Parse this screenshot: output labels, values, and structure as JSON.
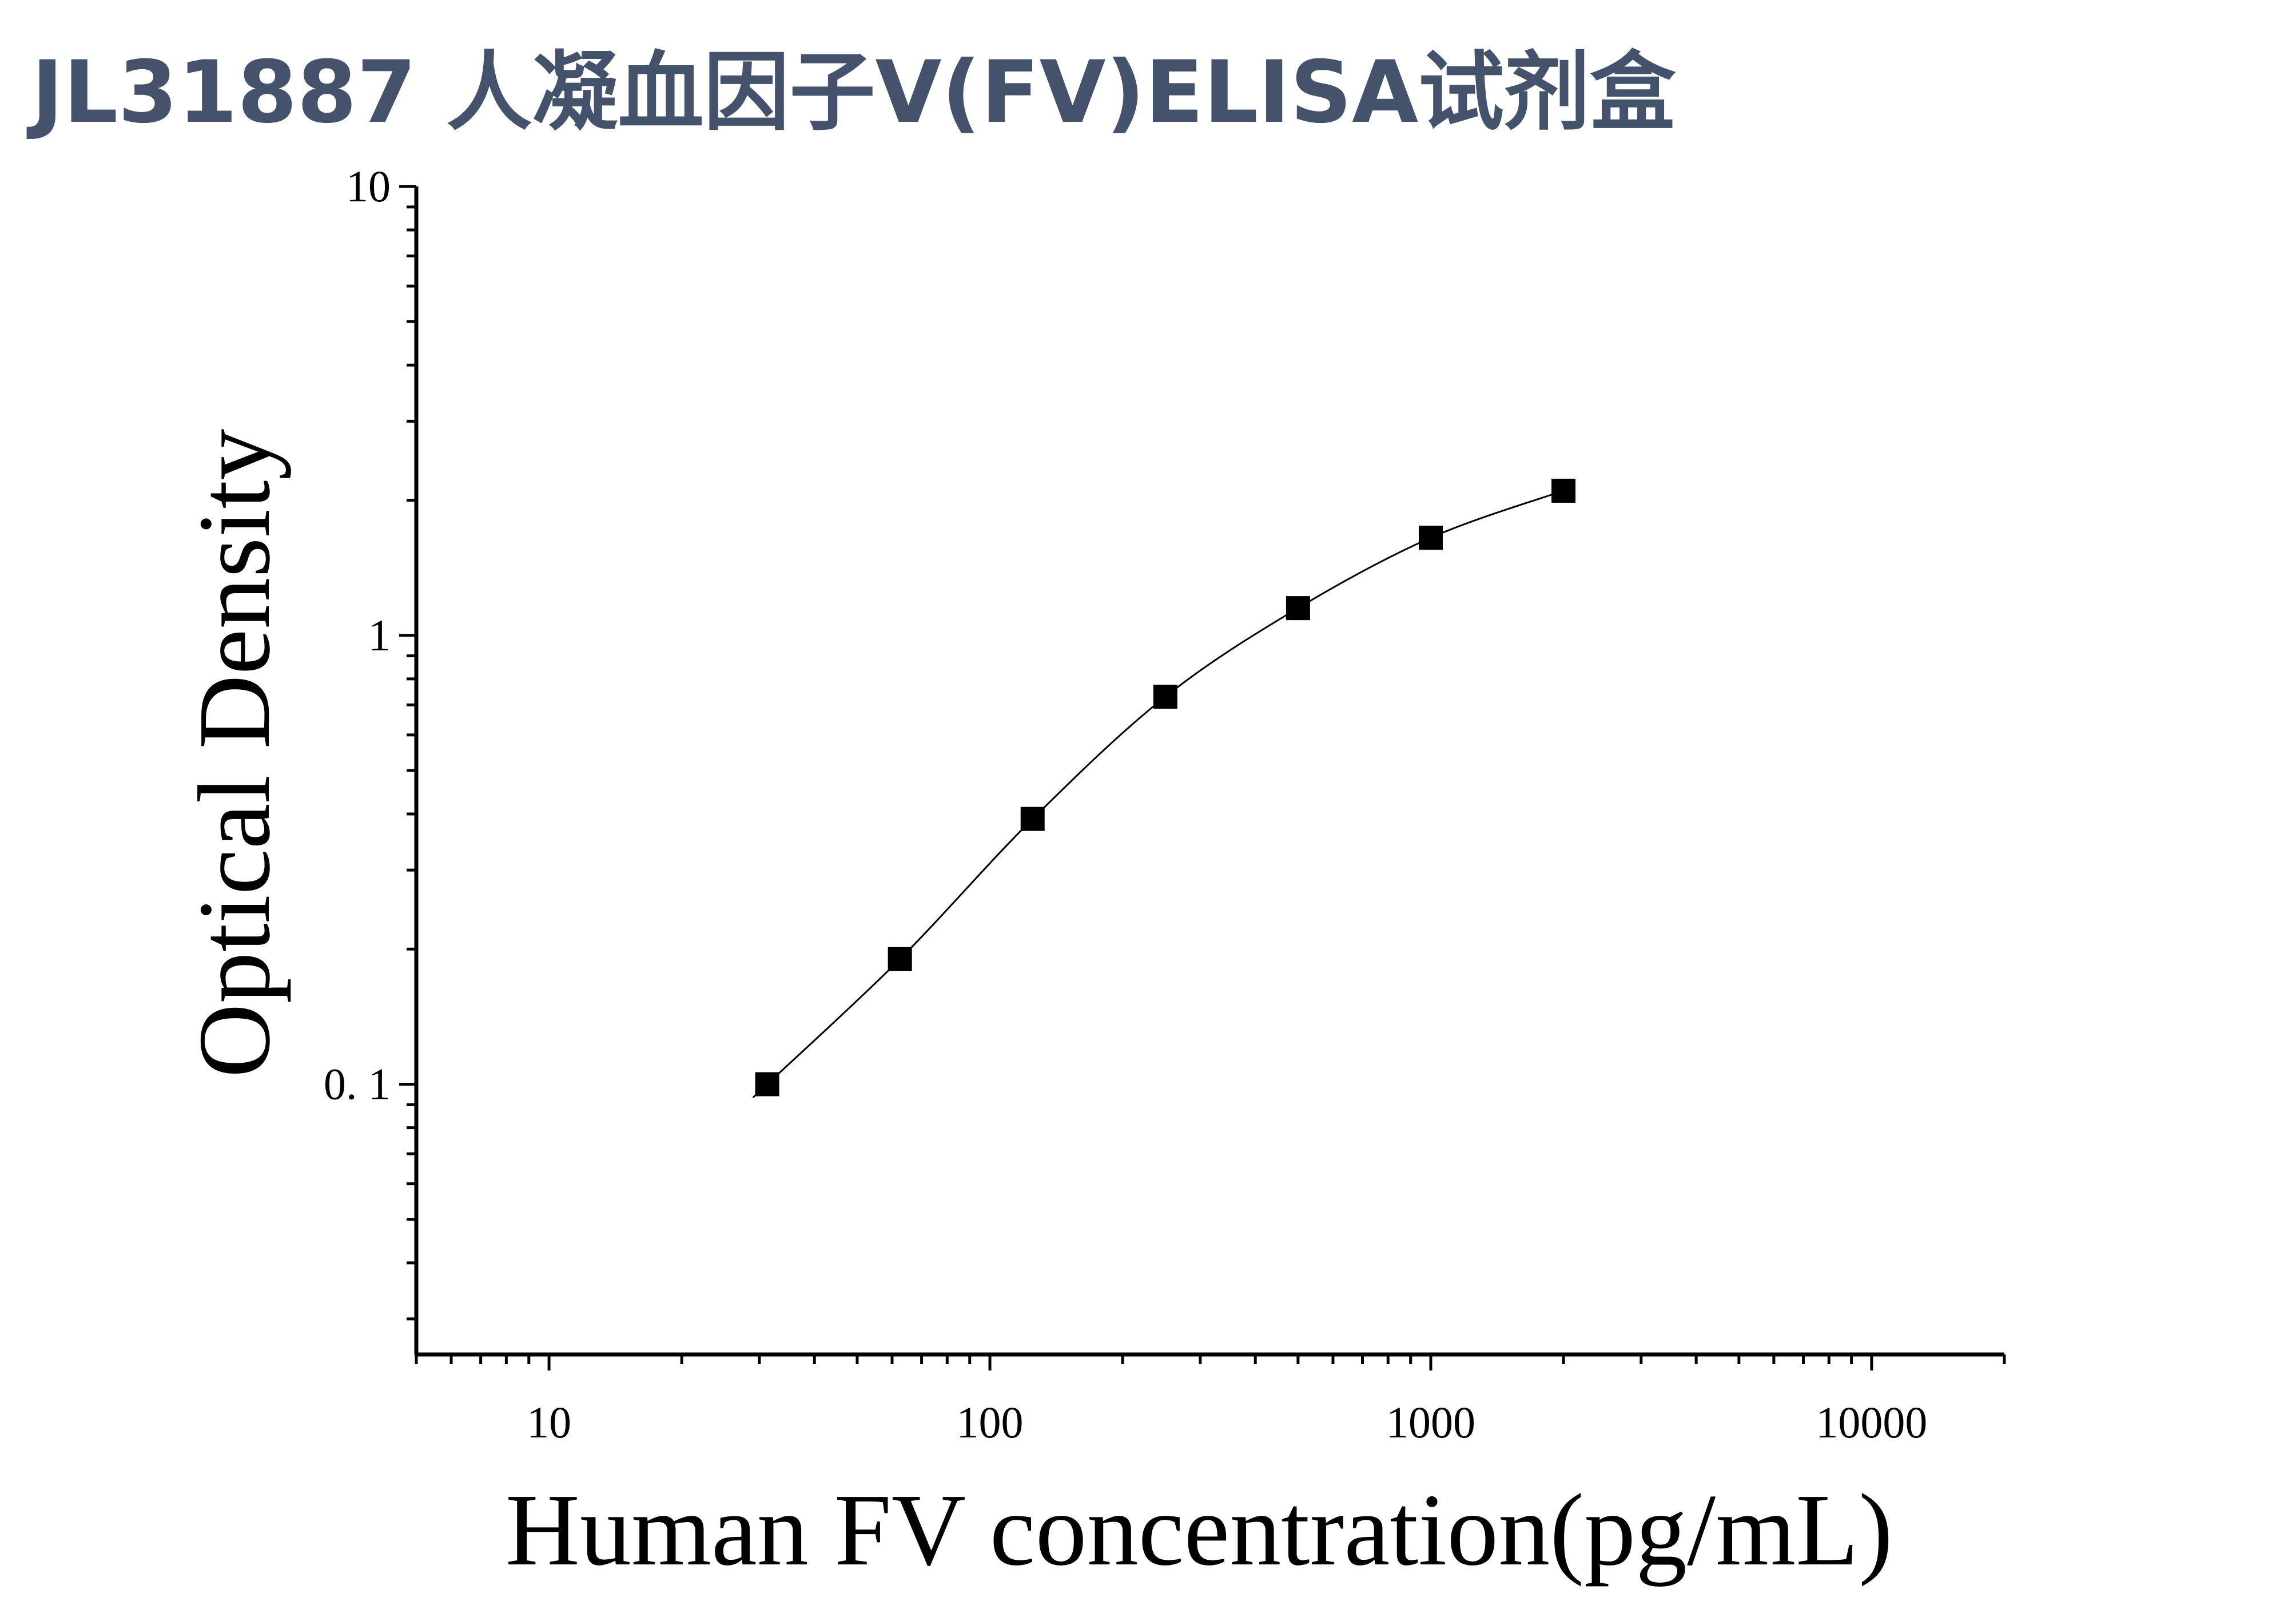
{
  "title": "JL31887 人凝血因子Ⅴ(FⅤ)ELISA试剂盒",
  "chart_data": {
    "type": "scatter",
    "xlabel": "Human FV concentration(pg/mL)",
    "ylabel": "Optical Density",
    "x_scale": "log",
    "y_scale": "log",
    "xlim": [
      5,
      20000
    ],
    "ylim": [
      0.025,
      10
    ],
    "x_ticks": [
      10,
      100,
      1000,
      10000
    ],
    "x_tick_labels": [
      "10",
      "100",
      "1000",
      "10000"
    ],
    "y_ticks": [
      0.1,
      1,
      10
    ],
    "y_tick_labels": [
      "0. 1",
      "1",
      "10"
    ],
    "grid": false,
    "series": [
      {
        "marker": "square",
        "x": [
          31.25,
          62.5,
          125,
          250,
          500,
          1000,
          2000
        ],
        "y": [
          0.1,
          0.19,
          0.39,
          0.73,
          1.15,
          1.65,
          2.1
        ]
      }
    ],
    "fit_curve": true,
    "color": "#000000"
  }
}
